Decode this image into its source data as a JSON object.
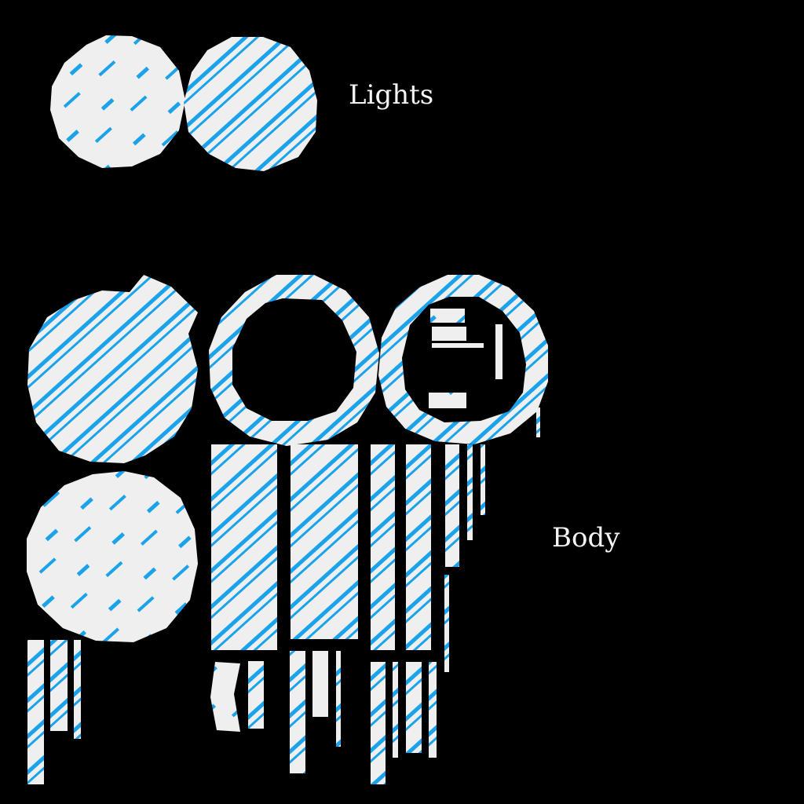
{
  "labels": {
    "lights": "Lights",
    "body": "Body"
  },
  "colors": {
    "background": "#000000",
    "island_fill": "#f0eff0",
    "stripe": "#1aa3ea",
    "label": "#f4f4f4"
  },
  "groups": [
    "lights",
    "body"
  ]
}
